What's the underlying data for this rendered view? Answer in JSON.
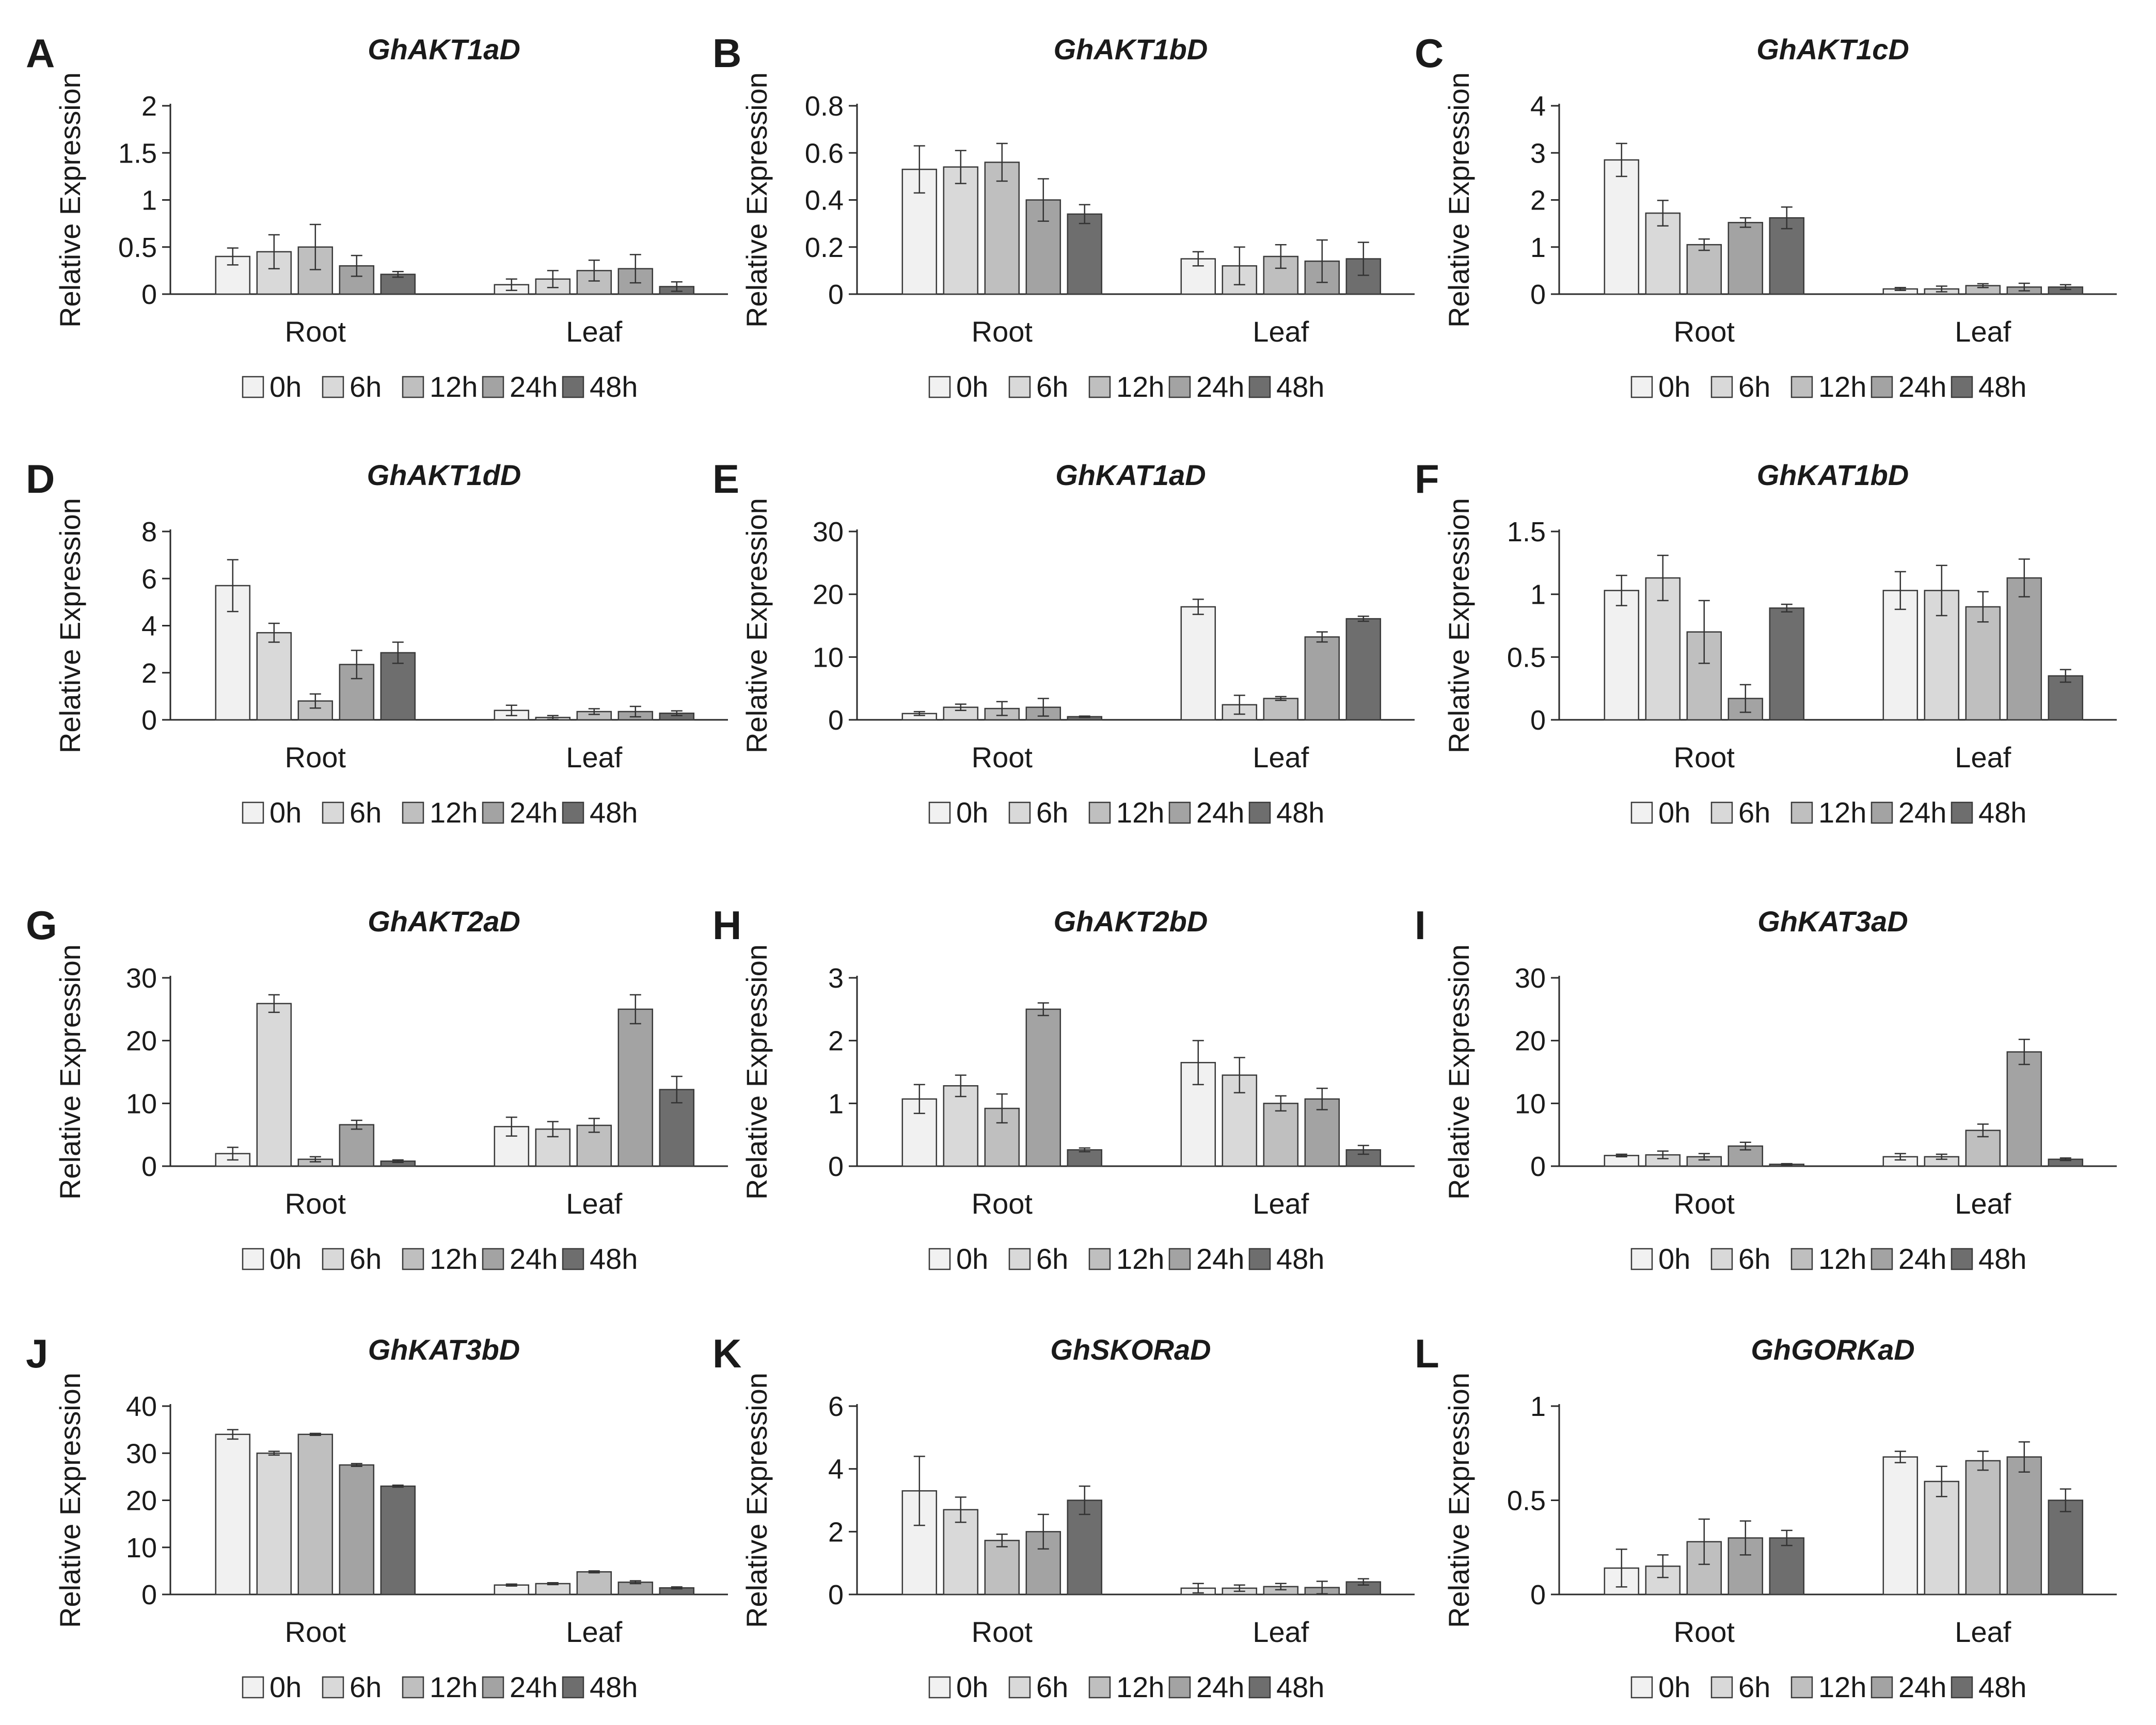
{
  "figure": {
    "ylabel": "Relative Expression",
    "legend": [
      "0h",
      "6h",
      "12h",
      "24h",
      "48h"
    ],
    "series_colors": [
      "#f1f1f1",
      "#d9d9d9",
      "#bfbfbf",
      "#a3a3a3",
      "#6e6e6e"
    ]
  },
  "chart_data": [
    {
      "type": "bar",
      "letter": "A",
      "title": "GhAKT1aD",
      "categories": [
        "Root",
        "Leaf"
      ],
      "series_names": [
        "0h",
        "6h",
        "12h",
        "24h",
        "48h"
      ],
      "ylim": [
        0,
        2
      ],
      "yticks": [
        0,
        0.5,
        1,
        1.5,
        2
      ],
      "ytick_labels": [
        "0",
        "0.5",
        "1",
        "1.5",
        "2"
      ],
      "values": [
        [
          0.4,
          0.45,
          0.5,
          0.3,
          0.21
        ],
        [
          0.1,
          0.16,
          0.25,
          0.27,
          0.08
        ]
      ],
      "errors": [
        [
          0.09,
          0.18,
          0.24,
          0.11,
          0.03
        ],
        [
          0.06,
          0.09,
          0.11,
          0.15,
          0.05
        ]
      ]
    },
    {
      "type": "bar",
      "letter": "B",
      "title": "GhAKT1bD",
      "categories": [
        "Root",
        "Leaf"
      ],
      "series_names": [
        "0h",
        "6h",
        "12h",
        "24h",
        "48h"
      ],
      "ylim": [
        0,
        0.8
      ],
      "yticks": [
        0,
        0.2,
        0.4,
        0.6,
        0.8
      ],
      "ytick_labels": [
        "0",
        "0.2",
        "0.4",
        "0.6",
        "0.8"
      ],
      "values": [
        [
          0.53,
          0.54,
          0.56,
          0.4,
          0.34
        ],
        [
          0.15,
          0.12,
          0.16,
          0.14,
          0.15
        ]
      ],
      "errors": [
        [
          0.1,
          0.07,
          0.08,
          0.09,
          0.04
        ],
        [
          0.03,
          0.08,
          0.05,
          0.09,
          0.07
        ]
      ]
    },
    {
      "type": "bar",
      "letter": "C",
      "title": "GhAKT1cD",
      "categories": [
        "Root",
        "Leaf"
      ],
      "series_names": [
        "0h",
        "6h",
        "12h",
        "24h",
        "48h"
      ],
      "ylim": [
        0,
        4
      ],
      "yticks": [
        0,
        1,
        2,
        3,
        4
      ],
      "ytick_labels": [
        "0",
        "1",
        "2",
        "3",
        "4"
      ],
      "values": [
        [
          2.85,
          1.72,
          1.05,
          1.52,
          1.62
        ],
        [
          0.11,
          0.11,
          0.18,
          0.15,
          0.15
        ]
      ],
      "errors": [
        [
          0.35,
          0.27,
          0.12,
          0.1,
          0.23
        ],
        [
          0.03,
          0.06,
          0.04,
          0.08,
          0.05
        ]
      ]
    },
    {
      "type": "bar",
      "letter": "D",
      "title": "GhAKT1dD",
      "categories": [
        "Root",
        "Leaf"
      ],
      "series_names": [
        "0h",
        "6h",
        "12h",
        "24h",
        "48h"
      ],
      "ylim": [
        0,
        8
      ],
      "yticks": [
        0,
        2,
        4,
        6,
        8
      ],
      "ytick_labels": [
        "0",
        "2",
        "4",
        "6",
        "8"
      ],
      "values": [
        [
          5.7,
          3.7,
          0.8,
          2.35,
          2.85
        ],
        [
          0.4,
          0.1,
          0.35,
          0.35,
          0.28
        ]
      ],
      "errors": [
        [
          1.1,
          0.4,
          0.3,
          0.6,
          0.45
        ],
        [
          0.22,
          0.08,
          0.12,
          0.22,
          0.1
        ]
      ]
    },
    {
      "type": "bar",
      "letter": "E",
      "title": "GhKAT1aD",
      "categories": [
        "Root",
        "Leaf"
      ],
      "series_names": [
        "0h",
        "6h",
        "12h",
        "24h",
        "48h"
      ],
      "ylim": [
        0,
        30
      ],
      "yticks": [
        0,
        10,
        20,
        30
      ],
      "ytick_labels": [
        "0",
        "10",
        "20",
        "30"
      ],
      "values": [
        [
          1.0,
          2.0,
          1.8,
          2.0,
          0.5
        ],
        [
          18.0,
          2.4,
          3.4,
          13.2,
          16.1
        ]
      ],
      "errors": [
        [
          0.3,
          0.5,
          1.1,
          1.4,
          0.1
        ],
        [
          1.2,
          1.5,
          0.3,
          0.8,
          0.4
        ]
      ]
    },
    {
      "type": "bar",
      "letter": "F",
      "title": "GhKAT1bD",
      "categories": [
        "Root",
        "Leaf"
      ],
      "series_names": [
        "0h",
        "6h",
        "12h",
        "24h",
        "48h"
      ],
      "ylim": [
        0,
        1.5
      ],
      "yticks": [
        0,
        0.5,
        1,
        1.5
      ],
      "ytick_labels": [
        "0",
        "0.5",
        "1",
        "1.5"
      ],
      "values": [
        [
          1.03,
          1.13,
          0.7,
          0.17,
          0.89
        ],
        [
          1.03,
          1.03,
          0.9,
          1.13,
          0.35
        ]
      ],
      "errors": [
        [
          0.12,
          0.18,
          0.25,
          0.11,
          0.03
        ],
        [
          0.15,
          0.2,
          0.12,
          0.15,
          0.05
        ]
      ]
    },
    {
      "type": "bar",
      "letter": "G",
      "title": "GhAKT2aD",
      "categories": [
        "Root",
        "Leaf"
      ],
      "series_names": [
        "0h",
        "6h",
        "12h",
        "24h",
        "48h"
      ],
      "ylim": [
        0,
        30
      ],
      "yticks": [
        0,
        10,
        20,
        30
      ],
      "ytick_labels": [
        "0",
        "10",
        "20",
        "30"
      ],
      "values": [
        [
          2.0,
          25.9,
          1.1,
          6.6,
          0.8
        ],
        [
          6.3,
          5.9,
          6.5,
          25.0,
          12.2
        ]
      ],
      "errors": [
        [
          1.0,
          1.4,
          0.4,
          0.7,
          0.2
        ],
        [
          1.5,
          1.2,
          1.1,
          2.3,
          2.1
        ]
      ]
    },
    {
      "type": "bar",
      "letter": "H",
      "title": "GhAKT2bD",
      "categories": [
        "Root",
        "Leaf"
      ],
      "series_names": [
        "0h",
        "6h",
        "12h",
        "24h",
        "48h"
      ],
      "ylim": [
        0,
        3
      ],
      "yticks": [
        0,
        1,
        2,
        3
      ],
      "ytick_labels": [
        "0",
        "1",
        "2",
        "3"
      ],
      "values": [
        [
          1.07,
          1.28,
          0.92,
          2.5,
          0.26
        ],
        [
          1.65,
          1.45,
          1.0,
          1.07,
          0.26
        ]
      ],
      "errors": [
        [
          0.23,
          0.17,
          0.23,
          0.1,
          0.03
        ],
        [
          0.35,
          0.28,
          0.12,
          0.17,
          0.07
        ]
      ]
    },
    {
      "type": "bar",
      "letter": "I",
      "title": "GhKAT3aD",
      "categories": [
        "Root",
        "Leaf"
      ],
      "series_names": [
        "0h",
        "6h",
        "12h",
        "24h",
        "48h"
      ],
      "ylim": [
        0,
        30
      ],
      "yticks": [
        0,
        10,
        20,
        30
      ],
      "ytick_labels": [
        "0",
        "10",
        "20",
        "30"
      ],
      "values": [
        [
          1.7,
          1.8,
          1.5,
          3.2,
          0.3
        ],
        [
          1.5,
          1.5,
          5.7,
          18.2,
          1.1
        ]
      ],
      "errors": [
        [
          0.2,
          0.6,
          0.5,
          0.6,
          0.1
        ],
        [
          0.5,
          0.4,
          1.0,
          2.0,
          0.2
        ]
      ]
    },
    {
      "type": "bar",
      "letter": "J",
      "title": "GhKAT3bD",
      "categories": [
        "Root",
        "Leaf"
      ],
      "series_names": [
        "0h",
        "6h",
        "12h",
        "24h",
        "48h"
      ],
      "ylim": [
        0,
        40
      ],
      "yticks": [
        0,
        10,
        20,
        30,
        40
      ],
      "ytick_labels": [
        "0",
        "10",
        "20",
        "30",
        "40"
      ],
      "values": [
        [
          34.0,
          30.0,
          34.0,
          27.5,
          23.0
        ],
        [
          2.0,
          2.3,
          4.8,
          2.6,
          1.4
        ]
      ],
      "errors": [
        [
          1.0,
          0.4,
          0.2,
          0.3,
          0.2
        ],
        [
          0.2,
          0.2,
          0.2,
          0.3,
          0.2
        ]
      ]
    },
    {
      "type": "bar",
      "letter": "K",
      "title": "GhSKORaD",
      "categories": [
        "Root",
        "Leaf"
      ],
      "series_names": [
        "0h",
        "6h",
        "12h",
        "24h",
        "48h"
      ],
      "ylim": [
        0,
        6
      ],
      "yticks": [
        0,
        2,
        4,
        6
      ],
      "ytick_labels": [
        "0",
        "2",
        "4",
        "6"
      ],
      "values": [
        [
          3.3,
          2.7,
          1.72,
          2.0,
          3.0
        ],
        [
          0.2,
          0.2,
          0.25,
          0.22,
          0.4
        ]
      ],
      "errors": [
        [
          1.1,
          0.4,
          0.2,
          0.55,
          0.45
        ],
        [
          0.15,
          0.1,
          0.1,
          0.2,
          0.1
        ]
      ]
    },
    {
      "type": "bar",
      "letter": "L",
      "title": "GhGORKaD",
      "categories": [
        "Root",
        "Leaf"
      ],
      "series_names": [
        "0h",
        "6h",
        "12h",
        "24h",
        "48h"
      ],
      "ylim": [
        0,
        1
      ],
      "yticks": [
        0,
        0.5,
        1
      ],
      "ytick_labels": [
        "0",
        "0.5",
        "1"
      ],
      "values": [
        [
          0.14,
          0.15,
          0.28,
          0.3,
          0.3
        ],
        [
          0.73,
          0.6,
          0.71,
          0.73,
          0.5
        ]
      ],
      "errors": [
        [
          0.1,
          0.06,
          0.12,
          0.09,
          0.04
        ],
        [
          0.03,
          0.08,
          0.05,
          0.08,
          0.06
        ]
      ]
    }
  ]
}
